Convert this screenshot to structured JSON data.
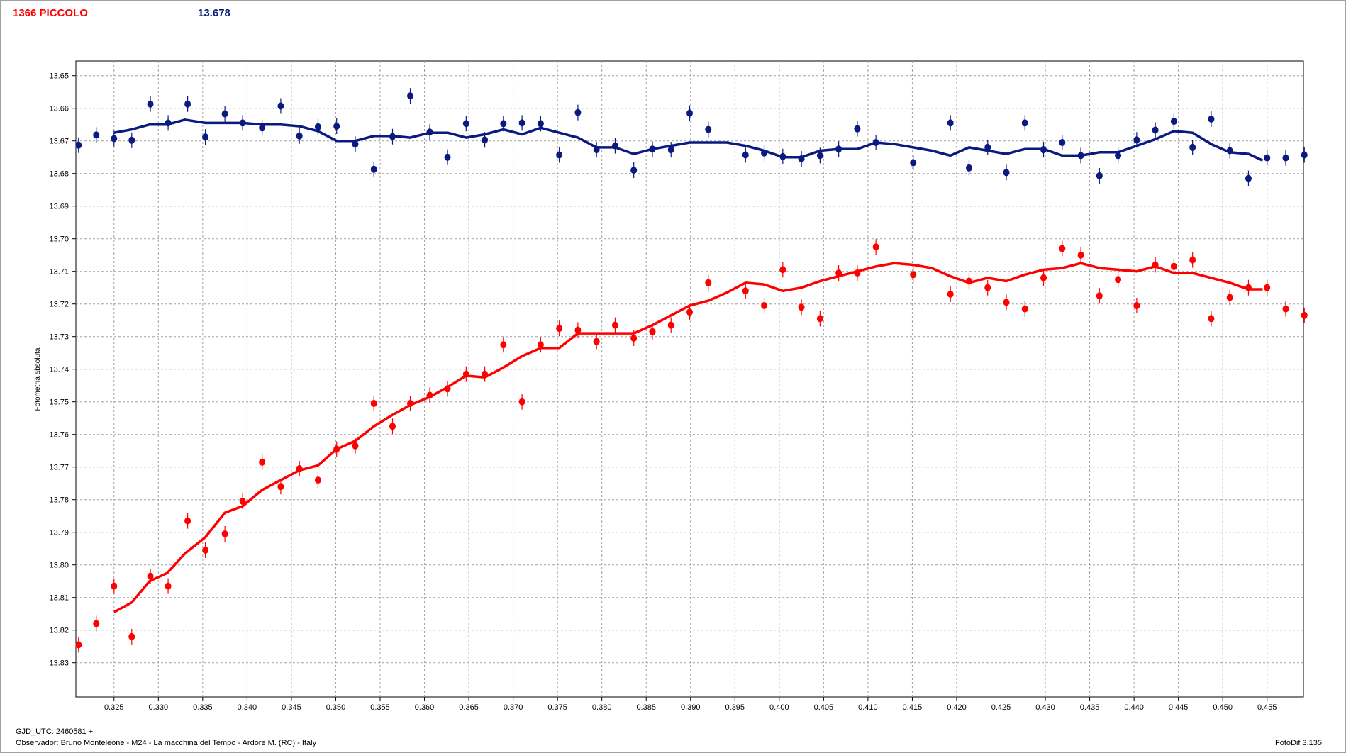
{
  "header": {
    "target_name": "1366 PICCOLO",
    "comparison_value": "13.678"
  },
  "footer": {
    "gjd_label": "GJD_UTC: 2460581 +",
    "observer": "Observador: Bruno Monteleone - M24 - La macchina del Tempo - Ardore M. (RC) - Italy",
    "software": "FotoDif 3.135"
  },
  "colors": {
    "red_series": "#ff0000",
    "blue_series": "#0a1a80",
    "grid": "#a0a0a0"
  },
  "chart_data": {
    "type": "scatter",
    "ylabel": "Fotometría absoluta",
    "xlabel": "",
    "xlim": [
      0.3207,
      0.4591
    ],
    "ylim": [
      13.8405,
      13.6455
    ],
    "y_inverted": true,
    "grid": true,
    "x_ticks": [
      "0.325",
      "0.330",
      "0.335",
      "0.340",
      "0.345",
      "0.350",
      "0.355",
      "0.360",
      "0.365",
      "0.370",
      "0.375",
      "0.380",
      "0.385",
      "0.390",
      "0.395",
      "0.400",
      "0.405",
      "0.410",
      "0.415",
      "0.420",
      "0.425",
      "0.430",
      "0.435",
      "0.440",
      "0.445",
      "0.450",
      "0.455"
    ],
    "y_ticks": [
      "13.65",
      "13.66",
      "13.67",
      "13.68",
      "13.69",
      "13.70",
      "13.71",
      "13.72",
      "13.73",
      "13.74",
      "13.75",
      "13.76",
      "13.77",
      "13.78",
      "13.79",
      "13.80",
      "13.81",
      "13.82",
      "13.83"
    ],
    "series": [
      {
        "color": "#0a1a80",
        "kind": "points",
        "x": [
          0.321,
          0.323,
          0.325,
          0.327,
          0.3291,
          0.3311,
          0.3333,
          0.3353,
          0.3375,
          0.3395,
          0.3417,
          0.3438,
          0.3459,
          0.348,
          0.3501,
          0.3522,
          0.3543,
          0.3564,
          0.3584,
          0.3606,
          0.3626,
          0.3647,
          0.3668,
          0.3689,
          0.371,
          0.3731,
          0.3752,
          0.3773,
          0.3794,
          0.3815,
          0.3836,
          0.3857,
          0.3878,
          0.3899,
          0.392,
          0.3962,
          0.3983,
          0.4004,
          0.4025,
          0.4046,
          0.4067,
          0.4088,
          0.4109,
          0.4151,
          0.4193,
          0.4214,
          0.4235,
          0.4256,
          0.4277,
          0.4298,
          0.4319,
          0.434,
          0.4361,
          0.4382,
          0.4403,
          0.4424,
          0.4445,
          0.4466,
          0.4487,
          0.4508,
          0.4529,
          0.455,
          0.4571,
          0.4592
        ],
        "y": [
          13.6713,
          13.6682,
          13.6693,
          13.6698,
          13.6587,
          13.6645,
          13.6587,
          13.6688,
          13.6617,
          13.6645,
          13.666,
          13.6593,
          13.6685,
          13.6657,
          13.6655,
          13.671,
          13.6787,
          13.6687,
          13.6562,
          13.6673,
          13.675,
          13.6647,
          13.6697,
          13.6647,
          13.6645,
          13.6647,
          13.6743,
          13.6613,
          13.6727,
          13.6715,
          13.679,
          13.6725,
          13.6727,
          13.6615,
          13.6665,
          13.6743,
          13.6737,
          13.6748,
          13.6755,
          13.6745,
          13.6725,
          13.6663,
          13.6705,
          13.6767,
          13.6645,
          13.6783,
          13.672,
          13.6797,
          13.6645,
          13.6727,
          13.6705,
          13.6745,
          13.6807,
          13.6745,
          13.6697,
          13.6667,
          13.664,
          13.672,
          13.6633,
          13.673,
          13.6815,
          13.6752,
          13.6752,
          13.6743
        ]
      },
      {
        "color": "#0a1a80",
        "kind": "line",
        "x": [
          0.325,
          0.327,
          0.329,
          0.331,
          0.333,
          0.3353,
          0.3375,
          0.3395,
          0.3417,
          0.3438,
          0.3459,
          0.348,
          0.3501,
          0.3522,
          0.3543,
          0.3564,
          0.3584,
          0.3606,
          0.3626,
          0.3647,
          0.3668,
          0.3689,
          0.371,
          0.3731,
          0.3752,
          0.3773,
          0.3794,
          0.3815,
          0.3836,
          0.3857,
          0.3878,
          0.3899,
          0.392,
          0.3941,
          0.3962,
          0.3983,
          0.4004,
          0.4025,
          0.4046,
          0.4067,
          0.4088,
          0.4109,
          0.413,
          0.4151,
          0.4172,
          0.4193,
          0.4214,
          0.4235,
          0.4256,
          0.4277,
          0.4298,
          0.4319,
          0.434,
          0.4361,
          0.4382,
          0.4403,
          0.4424,
          0.4445,
          0.4466,
          0.4487,
          0.4508,
          0.4529,
          0.4545
        ],
        "y": [
          13.6675,
          13.6665,
          13.665,
          13.665,
          13.6635,
          13.6645,
          13.6645,
          13.6645,
          13.665,
          13.665,
          13.6655,
          13.667,
          13.67,
          13.67,
          13.6685,
          13.6685,
          13.669,
          13.6675,
          13.6675,
          13.669,
          13.668,
          13.6665,
          13.668,
          13.666,
          13.6675,
          13.669,
          13.672,
          13.672,
          13.674,
          13.6725,
          13.6715,
          13.6705,
          13.6705,
          13.6705,
          13.6715,
          13.673,
          13.675,
          13.675,
          13.673,
          13.6725,
          13.6725,
          13.6705,
          13.671,
          13.672,
          13.673,
          13.6745,
          13.672,
          13.673,
          13.674,
          13.6725,
          13.6725,
          13.6745,
          13.6745,
          13.6735,
          13.6735,
          13.6715,
          13.6695,
          13.667,
          13.6675,
          13.671,
          13.6735,
          13.674,
          13.676
        ]
      },
      {
        "color": "#ff0000",
        "kind": "points",
        "x": [
          0.321,
          0.323,
          0.325,
          0.327,
          0.3291,
          0.3311,
          0.3333,
          0.3353,
          0.3375,
          0.3395,
          0.3417,
          0.3438,
          0.3459,
          0.348,
          0.3501,
          0.3522,
          0.3543,
          0.3564,
          0.3584,
          0.3606,
          0.3626,
          0.3647,
          0.3668,
          0.3689,
          0.371,
          0.3731,
          0.3752,
          0.3773,
          0.3794,
          0.3815,
          0.3836,
          0.3857,
          0.3878,
          0.3899,
          0.392,
          0.3962,
          0.3983,
          0.4004,
          0.4025,
          0.4046,
          0.4067,
          0.4088,
          0.4109,
          0.4151,
          0.4193,
          0.4214,
          0.4235,
          0.4256,
          0.4277,
          0.4298,
          0.4319,
          0.434,
          0.4361,
          0.4382,
          0.4403,
          0.4424,
          0.4445,
          0.4466,
          0.4487,
          0.4508,
          0.4529,
          0.455,
          0.4571,
          0.4592
        ],
        "y": [
          13.8245,
          13.818,
          13.8065,
          13.822,
          13.8035,
          13.8065,
          13.7865,
          13.7955,
          13.7905,
          13.7805,
          13.7685,
          13.776,
          13.7705,
          13.774,
          13.7645,
          13.7635,
          13.7505,
          13.7575,
          13.7505,
          13.748,
          13.746,
          13.7415,
          13.7415,
          13.7325,
          13.75,
          13.7325,
          13.7275,
          13.728,
          13.7315,
          13.7265,
          13.7305,
          13.7285,
          13.7265,
          13.7225,
          13.7135,
          13.716,
          13.7205,
          13.7095,
          13.721,
          13.7245,
          13.7105,
          13.7105,
          13.7025,
          13.711,
          13.717,
          13.713,
          13.715,
          13.7195,
          13.7215,
          13.712,
          13.703,
          13.705,
          13.7175,
          13.7125,
          13.7205,
          13.708,
          13.7085,
          13.7065,
          13.7245,
          13.718,
          13.715,
          13.715,
          13.7215,
          13.7235
        ]
      },
      {
        "color": "#ff0000",
        "kind": "line",
        "x": [
          0.325,
          0.327,
          0.329,
          0.331,
          0.333,
          0.3353,
          0.3375,
          0.3395,
          0.3417,
          0.3438,
          0.3459,
          0.348,
          0.3501,
          0.3522,
          0.3543,
          0.3564,
          0.3584,
          0.3606,
          0.3626,
          0.3647,
          0.3668,
          0.3689,
          0.371,
          0.3731,
          0.3752,
          0.3773,
          0.3794,
          0.3815,
          0.3836,
          0.3857,
          0.3878,
          0.3899,
          0.392,
          0.3941,
          0.3962,
          0.3983,
          0.4004,
          0.4025,
          0.4046,
          0.4067,
          0.4088,
          0.4109,
          0.413,
          0.4151,
          0.4172,
          0.4193,
          0.4214,
          0.4235,
          0.4256,
          0.4277,
          0.4298,
          0.4319,
          0.434,
          0.4361,
          0.4382,
          0.4403,
          0.4424,
          0.4445,
          0.4466,
          0.4487,
          0.4508,
          0.4529,
          0.4545
        ],
        "y": [
          13.8145,
          13.8115,
          13.805,
          13.8025,
          13.7965,
          13.7915,
          13.784,
          13.782,
          13.777,
          13.774,
          13.771,
          13.7695,
          13.7645,
          13.762,
          13.7575,
          13.754,
          13.751,
          13.7485,
          13.7455,
          13.742,
          13.7425,
          13.7395,
          13.736,
          13.7335,
          13.7335,
          13.729,
          13.729,
          13.729,
          13.729,
          13.7265,
          13.7235,
          13.7205,
          13.719,
          13.7165,
          13.7135,
          13.714,
          13.716,
          13.715,
          13.713,
          13.7115,
          13.71,
          13.7085,
          13.7075,
          13.708,
          13.709,
          13.7115,
          13.7135,
          13.712,
          13.713,
          13.711,
          13.7095,
          13.709,
          13.7075,
          13.709,
          13.7095,
          13.71,
          13.7085,
          13.7105,
          13.7105,
          13.712,
          13.7135,
          13.7155,
          13.7155
        ]
      }
    ]
  }
}
